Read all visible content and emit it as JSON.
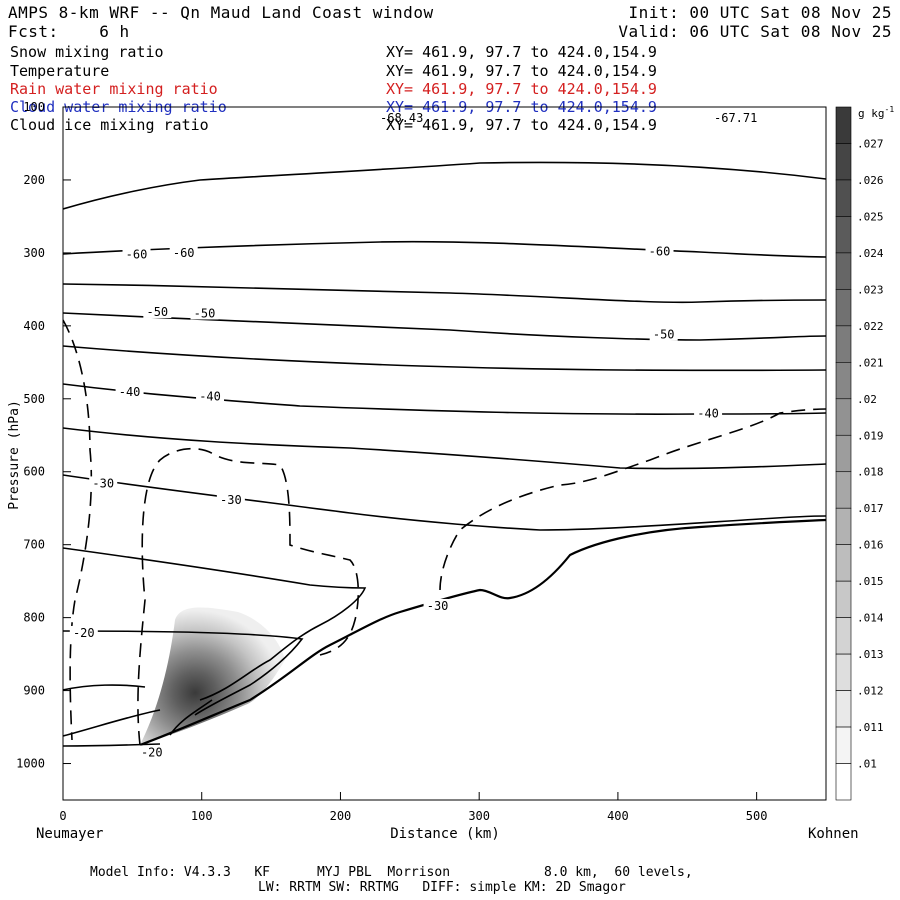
{
  "header": {
    "title": "AMPS 8-km WRF -- Qn Maud Land Coast window",
    "fcst": "Fcst:    6 h",
    "init": "Init: 00 UTC Sat 08 Nov 25",
    "valid": "Valid: 06 UTC Sat 08 Nov 25"
  },
  "legend": [
    {
      "name": "Snow mixing ratio",
      "xy": "XY= 461.9, 97.7 to 424.0,154.9",
      "color": "#000000"
    },
    {
      "name": "Temperature",
      "xy": "XY= 461.9, 97.7 to 424.0,154.9",
      "color": "#000000"
    },
    {
      "name": "Rain water mixing ratio",
      "xy": "XY= 461.9, 97.7 to 424.0,154.9",
      "color": "#d42020"
    },
    {
      "name": "Cloud water mixing ratio",
      "xy": "XY= 461.9, 97.7 to 424.0,154.9",
      "color": "#2030c0"
    },
    {
      "name": "Cloud ice mixing ratio",
      "xy": "XY= 461.9, 97.7 to 424.0,154.9",
      "color": "#000000"
    }
  ],
  "chart_data": {
    "type": "contour",
    "xlabel": "Distance (km)",
    "ylabel": "Pressure (hPa)",
    "xlim": [
      0,
      550
    ],
    "ylim": [
      1050,
      100
    ],
    "xticks": [
      0,
      100,
      200,
      300,
      400,
      500
    ],
    "yticks": [
      100,
      200,
      300,
      400,
      500,
      600,
      700,
      800,
      900,
      1000
    ],
    "left_end_label": "Neumayer",
    "right_end_label": "Kohnen",
    "top_values": [
      "-68.43",
      "-67.71"
    ],
    "colorbar": {
      "unit": "g kg",
      "unit_exp": "-1",
      "levels": [
        ".027",
        ".026",
        ".025",
        ".024",
        ".023",
        ".022",
        ".021",
        ".02",
        ".019",
        ".018",
        ".017",
        ".016",
        ".015",
        ".014",
        ".013",
        ".012",
        ".011",
        ".01"
      ]
    },
    "temperature_labels": [
      {
        "text": "-60",
        "x": 53,
        "p": 302
      },
      {
        "text": "-60",
        "x": 87,
        "p": 300
      },
      {
        "text": "-60",
        "x": 430,
        "p": 298
      },
      {
        "text": "-50",
        "x": 68,
        "p": 381
      },
      {
        "text": "-50",
        "x": 102,
        "p": 383
      },
      {
        "text": "-50",
        "x": 433,
        "p": 412
      },
      {
        "text": "-40",
        "x": 48,
        "p": 491
      },
      {
        "text": "-40",
        "x": 106,
        "p": 497
      },
      {
        "text": "-40",
        "x": 465,
        "p": 520
      },
      {
        "text": "-30",
        "x": 29,
        "p": 616
      },
      {
        "text": "-30",
        "x": 121,
        "p": 639
      },
      {
        "text": "-30",
        "x": 270,
        "p": 784
      },
      {
        "text": "-20",
        "x": 15,
        "p": 821
      },
      {
        "text": "-20",
        "x": 64,
        "p": 985
      }
    ],
    "temperature_isotherms_C": [
      -60,
      -50,
      -40,
      -30,
      -20
    ],
    "snow_max_region": {
      "x_center_km": 100,
      "p_center_hPa": 900,
      "max_g_per_kg": 0.027
    }
  },
  "footer": {
    "line1": "Model Info: V4.3.3   KF      MYJ PBL  Morrison            8.0 km,  60 levels,",
    "line2": "LW: RRTM SW: RRTMG   DIFF: simple KM: 2D Smagor"
  }
}
